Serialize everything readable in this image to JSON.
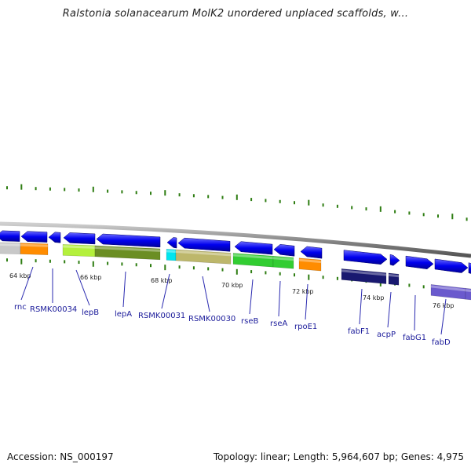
{
  "title": "Ralstonia solanacearum MolK2 unordered unplaced scaffolds, w...",
  "footer": {
    "accession": "Accession: NS_000197",
    "stats": "Topology: linear; Length: 5,964,607 bp; Genes: 4,975"
  },
  "colors": {
    "backbone": "#7a7a7a",
    "tick": "#2e7d12",
    "label_line": "#2a2ab0",
    "label_text": "#1a1a9a"
  },
  "scale_labels": [
    "64 kbp",
    "66 kbp",
    "68 kbp",
    "70 kbp",
    "72 kbp",
    "74 kbp",
    "76 kbp"
  ],
  "genes": [
    {
      "name": "rnc",
      "strand": "reverse",
      "product_color": "#c8c8c8"
    },
    {
      "name": "RSMK00034",
      "strand": "reverse",
      "product_color": "#ff8c00"
    },
    {
      "name": "lepB",
      "strand": "reverse",
      "product_color": "#b4f03c"
    },
    {
      "name": "lepA",
      "strand": "reverse",
      "product_color": "#6b8e23"
    },
    {
      "name": "RSMK00031",
      "strand": "reverse",
      "product_color": "#00e5ee"
    },
    {
      "name": "RSMK00030",
      "strand": "reverse",
      "product_color": "#bdb76b"
    },
    {
      "name": "rseB",
      "strand": "reverse",
      "product_color": "#32cd32"
    },
    {
      "name": "rseA",
      "strand": "reverse",
      "product_color": "#32cd32"
    },
    {
      "name": "rpoE1",
      "strand": "reverse",
      "product_color": "#ff8c00"
    },
    {
      "name": "fabF1",
      "strand": "forward",
      "product_color": "#191970"
    },
    {
      "name": "acpP",
      "strand": "forward",
      "product_color": "#191970"
    },
    {
      "name": "fabG1",
      "strand": "forward",
      "product_color": "#6a5acd"
    },
    {
      "name": "fabD",
      "strand": "forward",
      "product_color": "#6a5acd"
    }
  ]
}
